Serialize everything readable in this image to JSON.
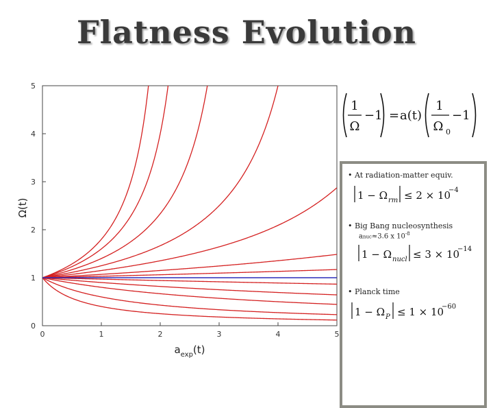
{
  "slide": {
    "title": "Flatness Evolution"
  },
  "chart_data": {
    "type": "line",
    "xlabel": "a_exp(t)",
    "ylabel": "Ω(t)",
    "xlim": [
      0,
      5
    ],
    "ylim": [
      0,
      5
    ],
    "x_ticks": [
      "0",
      "1",
      "2",
      "3",
      "4",
      "5"
    ],
    "y_ticks": [
      "0",
      "1",
      "2",
      "3",
      "4",
      "5"
    ],
    "series_color": "#d42020",
    "flat_color": "#2b2bb8",
    "omega_zero": [
      1.8,
      1.6,
      1.4,
      1.25,
      1.15,
      1.07,
      1.03,
      0.97,
      0.9,
      0.8,
      0.6,
      0.4
    ],
    "flat_series_value": 1
  },
  "side": {
    "formula": {
      "one": "1",
      "minus_one": "−1",
      "equals": "=",
      "omega": "Ω",
      "omega0": "Ω",
      "sub0": "0",
      "a_of_t": "a(t)"
    },
    "bullets": [
      {
        "text": "At  radiation-matter  equiv.",
        "ineq_lhs": "1 − Ω",
        "ineq_sub": "rm",
        "ineq_rhs": "≤ 2 × 10",
        "ineq_exp": "−4"
      },
      {
        "text": "Big Bang nucleosynthesis",
        "sub_a": "a",
        "sub_a_sub": "nuc",
        "sub_rest": "≈3.6 x 10",
        "sub_exp": "-8",
        "ineq_lhs": "1 − Ω",
        "ineq_sub": "nucl",
        "ineq_rhs": "≤ 3 × 10",
        "ineq_exp": "−14"
      },
      {
        "text": "Planck time",
        "ineq_lhs": "1 − Ω",
        "ineq_sub": "P",
        "ineq_rhs": "≤ 1 × 10",
        "ineq_exp": "−60"
      }
    ]
  }
}
